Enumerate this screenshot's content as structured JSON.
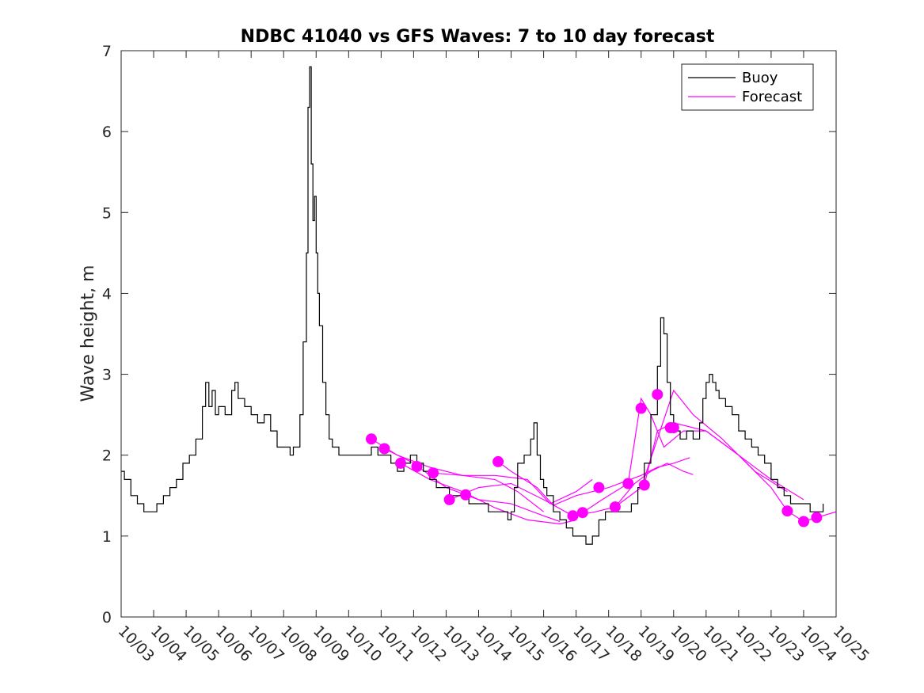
{
  "chart_data": {
    "type": "line",
    "title": "NDBC 41040 vs GFS Waves: 7 to 10 day forecast",
    "xlabel": "",
    "ylabel": "Wave height, m",
    "ylim": [
      0,
      7
    ],
    "xlim": [
      "10/03",
      "10/25"
    ],
    "x_ticks": [
      "10/03",
      "10/04",
      "10/05",
      "10/06",
      "10/07",
      "10/08",
      "10/09",
      "10/10",
      "10/11",
      "10/12",
      "10/13",
      "10/14",
      "10/15",
      "10/16",
      "10/17",
      "10/18",
      "10/19",
      "10/20",
      "10/21",
      "10/22",
      "10/23",
      "10/24",
      "10/25"
    ],
    "y_ticks": [
      0,
      1,
      2,
      3,
      4,
      5,
      6,
      7
    ],
    "grid": false,
    "legend_position": "top-right",
    "series": [
      {
        "name": "Buoy",
        "color": "#000000",
        "style": "step",
        "x_unit": "day of October",
        "points": [
          [
            3.0,
            1.8
          ],
          [
            3.1,
            1.7
          ],
          [
            3.3,
            1.5
          ],
          [
            3.5,
            1.4
          ],
          [
            3.7,
            1.3
          ],
          [
            3.9,
            1.3
          ],
          [
            4.1,
            1.4
          ],
          [
            4.3,
            1.5
          ],
          [
            4.5,
            1.6
          ],
          [
            4.7,
            1.7
          ],
          [
            4.9,
            1.9
          ],
          [
            5.1,
            2.0
          ],
          [
            5.3,
            2.2
          ],
          [
            5.5,
            2.6
          ],
          [
            5.6,
            2.9
          ],
          [
            5.7,
            2.6
          ],
          [
            5.8,
            2.8
          ],
          [
            5.9,
            2.5
          ],
          [
            6.0,
            2.6
          ],
          [
            6.2,
            2.5
          ],
          [
            6.4,
            2.8
          ],
          [
            6.5,
            2.9
          ],
          [
            6.6,
            2.7
          ],
          [
            6.8,
            2.6
          ],
          [
            7.0,
            2.5
          ],
          [
            7.2,
            2.4
          ],
          [
            7.4,
            2.5
          ],
          [
            7.6,
            2.3
          ],
          [
            7.8,
            2.1
          ],
          [
            8.0,
            2.1
          ],
          [
            8.2,
            2.0
          ],
          [
            8.3,
            2.1
          ],
          [
            8.5,
            2.5
          ],
          [
            8.6,
            3.4
          ],
          [
            8.7,
            4.5
          ],
          [
            8.75,
            6.3
          ],
          [
            8.8,
            6.8
          ],
          [
            8.85,
            5.6
          ],
          [
            8.9,
            4.9
          ],
          [
            8.95,
            5.2
          ],
          [
            9.0,
            4.5
          ],
          [
            9.05,
            4.0
          ],
          [
            9.1,
            3.6
          ],
          [
            9.2,
            2.9
          ],
          [
            9.3,
            2.5
          ],
          [
            9.4,
            2.2
          ],
          [
            9.5,
            2.1
          ],
          [
            9.7,
            2.0
          ],
          [
            9.9,
            2.0
          ],
          [
            10.1,
            2.0
          ],
          [
            10.3,
            2.0
          ],
          [
            10.5,
            2.0
          ],
          [
            10.7,
            2.1
          ],
          [
            10.9,
            2.0
          ],
          [
            11.1,
            2.0
          ],
          [
            11.3,
            1.9
          ],
          [
            11.5,
            1.8
          ],
          [
            11.7,
            1.9
          ],
          [
            11.9,
            2.0
          ],
          [
            12.1,
            1.9
          ],
          [
            12.3,
            1.8
          ],
          [
            12.5,
            1.7
          ],
          [
            12.7,
            1.6
          ],
          [
            12.9,
            1.6
          ],
          [
            13.1,
            1.5
          ],
          [
            13.3,
            1.5
          ],
          [
            13.5,
            1.5
          ],
          [
            13.7,
            1.4
          ],
          [
            13.9,
            1.4
          ],
          [
            14.1,
            1.4
          ],
          [
            14.3,
            1.3
          ],
          [
            14.5,
            1.3
          ],
          [
            14.7,
            1.3
          ],
          [
            14.9,
            1.2
          ],
          [
            15.0,
            1.3
          ],
          [
            15.1,
            1.6
          ],
          [
            15.2,
            1.9
          ],
          [
            15.4,
            2.0
          ],
          [
            15.6,
            2.2
          ],
          [
            15.7,
            2.4
          ],
          [
            15.8,
            2.0
          ],
          [
            15.9,
            1.7
          ],
          [
            16.0,
            1.6
          ],
          [
            16.1,
            1.5
          ],
          [
            16.3,
            1.3
          ],
          [
            16.5,
            1.2
          ],
          [
            16.7,
            1.1
          ],
          [
            16.9,
            1.0
          ],
          [
            17.1,
            1.0
          ],
          [
            17.3,
            0.9
          ],
          [
            17.5,
            1.0
          ],
          [
            17.7,
            1.2
          ],
          [
            17.9,
            1.3
          ],
          [
            18.1,
            1.3
          ],
          [
            18.3,
            1.3
          ],
          [
            18.5,
            1.3
          ],
          [
            18.7,
            1.4
          ],
          [
            18.9,
            1.6
          ],
          [
            19.1,
            1.9
          ],
          [
            19.3,
            2.5
          ],
          [
            19.5,
            3.1
          ],
          [
            19.6,
            3.7
          ],
          [
            19.7,
            3.5
          ],
          [
            19.8,
            2.9
          ],
          [
            19.9,
            2.5
          ],
          [
            20.0,
            2.3
          ],
          [
            20.2,
            2.2
          ],
          [
            20.4,
            2.3
          ],
          [
            20.6,
            2.2
          ],
          [
            20.8,
            2.4
          ],
          [
            20.9,
            2.7
          ],
          [
            21.0,
            2.9
          ],
          [
            21.1,
            3.0
          ],
          [
            21.2,
            2.9
          ],
          [
            21.3,
            2.8
          ],
          [
            21.4,
            2.7
          ],
          [
            21.6,
            2.6
          ],
          [
            21.8,
            2.5
          ],
          [
            22.0,
            2.3
          ],
          [
            22.2,
            2.2
          ],
          [
            22.4,
            2.1
          ],
          [
            22.6,
            2.0
          ],
          [
            22.8,
            1.9
          ],
          [
            23.0,
            1.7
          ],
          [
            23.2,
            1.6
          ],
          [
            23.4,
            1.5
          ],
          [
            23.6,
            1.4
          ],
          [
            23.8,
            1.4
          ],
          [
            24.0,
            1.4
          ],
          [
            24.2,
            1.3
          ],
          [
            24.4,
            1.3
          ],
          [
            24.6,
            1.4
          ]
        ]
      },
      {
        "name": "Forecast",
        "color": "#ff00ff",
        "style": "line",
        "x_unit": "day of October",
        "markers": [
          [
            10.7,
            2.2
          ],
          [
            11.1,
            2.08
          ],
          [
            11.6,
            1.9
          ],
          [
            12.1,
            1.86
          ],
          [
            12.6,
            1.78
          ],
          [
            13.1,
            1.45
          ],
          [
            13.6,
            1.51
          ],
          [
            14.6,
            1.92
          ],
          [
            16.9,
            1.25
          ],
          [
            17.2,
            1.29
          ],
          [
            17.7,
            1.6
          ],
          [
            18.2,
            1.36
          ],
          [
            18.6,
            1.65
          ],
          [
            19.0,
            2.58
          ],
          [
            19.1,
            1.63
          ],
          [
            19.5,
            2.75
          ],
          [
            19.9,
            2.34
          ],
          [
            20.0,
            2.34
          ],
          [
            23.5,
            1.31
          ],
          [
            24.0,
            1.18
          ],
          [
            24.4,
            1.23
          ]
        ],
        "runs": [
          [
            [
              10.7,
              2.2
            ],
            [
              11.5,
              2.0
            ],
            [
              12.5,
              1.85
            ],
            [
              13.5,
              1.75
            ],
            [
              14.5,
              1.7
            ],
            [
              15.2,
              1.55
            ],
            [
              16.0,
              1.3
            ]
          ],
          [
            [
              11.1,
              2.08
            ],
            [
              12.0,
              1.9
            ],
            [
              13.0,
              1.6
            ],
            [
              14.0,
              1.45
            ],
            [
              15.0,
              1.4
            ],
            [
              16.0,
              1.25
            ],
            [
              16.5,
              1.18
            ]
          ],
          [
            [
              11.6,
              1.9
            ],
            [
              12.5,
              1.7
            ],
            [
              13.5,
              1.55
            ],
            [
              14.5,
              1.35
            ],
            [
              15.5,
              1.2
            ],
            [
              16.5,
              1.15
            ],
            [
              17.0,
              1.2
            ]
          ],
          [
            [
              12.6,
              1.78
            ],
            [
              13.5,
              1.75
            ],
            [
              14.5,
              1.75
            ],
            [
              15.5,
              1.7
            ],
            [
              16.2,
              1.4
            ],
            [
              17.0,
              1.55
            ],
            [
              17.5,
              1.7
            ]
          ],
          [
            [
              13.1,
              1.45
            ],
            [
              14.0,
              1.6
            ],
            [
              15.0,
              1.65
            ],
            [
              16.0,
              1.45
            ],
            [
              16.9,
              1.25
            ]
          ],
          [
            [
              14.6,
              1.92
            ],
            [
              15.0,
              1.8
            ],
            [
              15.8,
              1.6
            ],
            [
              16.3,
              1.38
            ],
            [
              17.0,
              1.5
            ],
            [
              18.0,
              1.6
            ],
            [
              19.0,
              1.75
            ],
            [
              19.5,
              1.85
            ],
            [
              20.0,
              1.9
            ],
            [
              20.5,
              1.97
            ]
          ],
          [
            [
              16.9,
              1.25
            ],
            [
              17.6,
              1.3
            ],
            [
              18.2,
              1.36
            ],
            [
              19.0,
              1.6
            ],
            [
              19.5,
              2.2
            ],
            [
              20.0,
              2.8
            ],
            [
              20.6,
              2.5
            ],
            [
              21.5,
              2.2
            ],
            [
              22.5,
              1.8
            ],
            [
              23.5,
              1.55
            ]
          ],
          [
            [
              17.2,
              1.29
            ],
            [
              17.8,
              1.45
            ],
            [
              18.6,
              1.65
            ],
            [
              19.0,
              2.7
            ],
            [
              19.3,
              2.5
            ],
            [
              19.7,
              2.1
            ],
            [
              20.3,
              2.3
            ],
            [
              21.0,
              2.3
            ],
            [
              22.0,
              2.0
            ],
            [
              23.0,
              1.7
            ],
            [
              24.0,
              1.45
            ]
          ],
          [
            [
              18.2,
              1.36
            ],
            [
              18.8,
              1.65
            ],
            [
              19.3,
              1.8
            ],
            [
              19.8,
              1.9
            ],
            [
              20.3,
              1.8
            ],
            [
              20.6,
              1.76
            ]
          ],
          [
            [
              19.1,
              1.63
            ],
            [
              19.5,
              2.3
            ],
            [
              20.0,
              2.4
            ],
            [
              21.0,
              2.3
            ],
            [
              22.0,
              2.0
            ],
            [
              23.0,
              1.6
            ],
            [
              23.5,
              1.31
            ],
            [
              24.0,
              1.18
            ],
            [
              24.4,
              1.23
            ],
            [
              25.0,
              1.3
            ]
          ]
        ]
      }
    ]
  }
}
